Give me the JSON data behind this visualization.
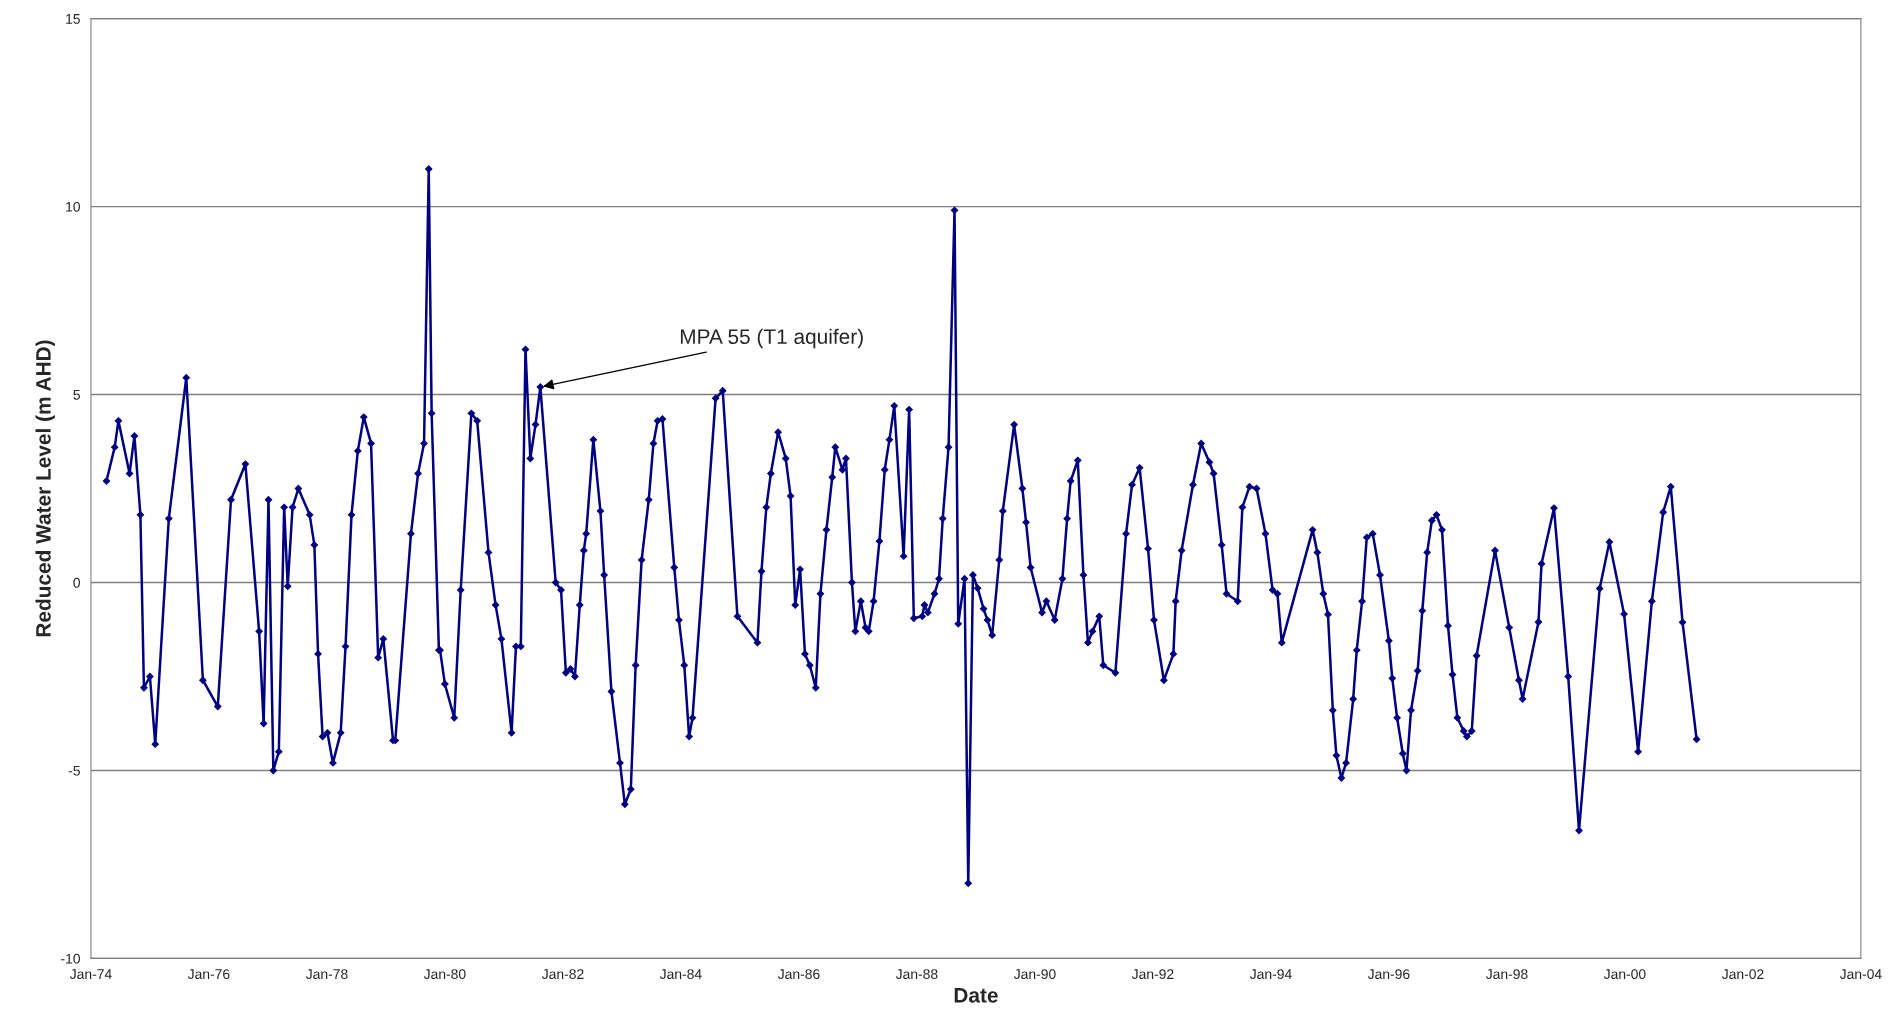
{
  "chart_data": {
    "type": "line",
    "xlabel": "Date",
    "ylabel": "Reduced Water Level (m AHD)",
    "annotations": [
      {
        "text": "MPA 55 (T1 aquifer)",
        "x": "1981-08-14",
        "y": 5.2
      }
    ],
    "series": [
      {
        "color": "#000080",
        "x": [
          "1974-04-07",
          "1974-05-28",
          "1974-06-20",
          "1974-08-28",
          "1974-09-27",
          "1974-11-03",
          "1974-11-25",
          "1975-01-01",
          "1975-02-03",
          "1975-04-28",
          "1975-08-14",
          "1975-11-25",
          "1976-02-25",
          "1976-05-17",
          "1976-08-14",
          "1976-11-07",
          "1976-12-05",
          "1977-01-04",
          "1977-02-03",
          "1977-03-09",
          "1977-04-11",
          "1977-05-03",
          "1977-06-02",
          "1977-07-08",
          "1977-09-16",
          "1977-10-15",
          "1977-11-07",
          "1977-12-05",
          "1978-01-04",
          "1978-02-07",
          "1978-03-27",
          "1978-04-26",
          "1978-06-02",
          "1978-07-11",
          "1978-08-17",
          "1978-10-01",
          "1978-11-14",
          "1978-12-16",
          "1979-02-14",
          "1979-02-28",
          "1979-06-05",
          "1979-07-19",
          "1979-08-25",
          "1979-09-23",
          "1979-10-11",
          "1979-11-25",
          "1979-12-02",
          "1980-01-01",
          "1980-02-28",
          "1980-04-08",
          "1980-06-13",
          "1980-07-19",
          "1980-09-27",
          "1980-11-10",
          "1980-12-16",
          "1981-02-17",
          "1981-03-16",
          "1981-04-15",
          "1981-05-14",
          "1981-06-13",
          "1981-07-15",
          "1981-08-14",
          "1981-11-17",
          "1981-12-20",
          "1982-01-19",
          "1982-02-17",
          "1982-03-16",
          "1982-04-15",
          "1982-05-10",
          "1982-05-25",
          "1982-07-08",
          "1982-08-21",
          "1982-09-13",
          "1982-10-28",
          "1982-12-20",
          "1983-01-19",
          "1983-02-25",
          "1983-03-27",
          "1983-05-03",
          "1983-06-16",
          "1983-07-15",
          "1983-08-10",
          "1983-09-09",
          "1983-11-21",
          "1983-12-20",
          "1984-01-22",
          "1984-02-21",
          "1984-03-13",
          "1984-08-03",
          "1984-09-16",
          "1984-12-16",
          "1985-04-19",
          "1985-05-14",
          "1985-06-13",
          "1985-07-11",
          "1985-08-25",
          "1985-10-11",
          "1985-11-10",
          "1985-12-09",
          "1986-01-08",
          "1986-02-07",
          "1986-03-09",
          "1986-04-15",
          "1986-05-14",
          "1986-06-20",
          "1986-07-26",
          "1986-08-14",
          "1986-09-27",
          "1986-10-19",
          "1986-11-25",
          "1986-12-16",
          "1987-01-19",
          "1987-02-17",
          "1987-03-09",
          "1987-04-08",
          "1987-05-14",
          "1987-06-16",
          "1987-07-15",
          "1987-08-14",
          "1987-10-11",
          "1987-11-14",
          "1987-12-13",
          "1988-02-03",
          "1988-02-17",
          "1988-03-09",
          "1988-04-19",
          "1988-05-17",
          "1988-06-09",
          "1988-07-15",
          "1988-08-21",
          "1988-09-13",
          "1988-10-22",
          "1988-11-14",
          "1988-12-13",
          "1989-01-11",
          "1989-02-17",
          "1989-03-13",
          "1989-04-11",
          "1989-05-25",
          "1989-06-16",
          "1989-08-25",
          "1989-10-15",
          "1989-11-07",
          "1989-12-05",
          "1990-02-14",
          "1990-03-13",
          "1990-05-03",
          "1990-06-20",
          "1990-07-19",
          "1990-08-10",
          "1990-09-23",
          "1990-10-28",
          "1990-11-25",
          "1990-12-23",
          "1991-02-03",
          "1991-02-28",
          "1991-05-14",
          "1991-07-19",
          "1991-08-25",
          "1991-10-11",
          "1991-12-02",
          "1992-01-08",
          "1992-03-09",
          "1992-05-07",
          "1992-05-21",
          "1992-06-27",
          "1992-09-05",
          "1992-10-26",
          "1992-12-16",
          "1993-01-11",
          "1993-03-02",
          "1993-04-01",
          "1993-06-09",
          "1993-07-08",
          "1993-08-21",
          "1993-10-04",
          "1993-11-28",
          "1994-01-11",
          "1994-02-10",
          "1994-03-09",
          "1994-09-16",
          "1994-10-15",
          "1994-11-21",
          "1994-12-20",
          "1995-01-19",
          "1995-02-10",
          "1995-03-13",
          "1995-04-11",
          "1995-05-25",
          "1995-06-16",
          "1995-07-19",
          "1995-08-17",
          "1995-09-23",
          "1995-11-07",
          "1996-01-01",
          "1996-01-22",
          "1996-02-21",
          "1996-03-27",
          "1996-04-19",
          "1996-05-17",
          "1996-06-27",
          "1996-07-26",
          "1996-08-25",
          "1996-09-23",
          "1996-10-22",
          "1996-11-25",
          "1997-01-01",
          "1997-01-29",
          "1997-02-28",
          "1997-04-08",
          "1997-04-28",
          "1997-05-28",
          "1997-06-27",
          "1997-10-19",
          "1998-01-15",
          "1998-03-16",
          "1998-04-08",
          "1998-07-15",
          "1998-08-03",
          "1998-10-19",
          "1999-01-15",
          "1999-03-23",
          "1999-07-29",
          "1999-09-27",
          "1999-12-27",
          "2000-03-23",
          "2000-06-16",
          "2000-08-25",
          "2000-10-11",
          "2000-12-23",
          "2001-03-20"
        ],
        "values": [
          2.7,
          3.6,
          4.3,
          2.9,
          3.9,
          1.8,
          -2.8,
          -2.5,
          -4.3,
          1.7,
          5.45,
          -2.6,
          -3.3,
          2.2,
          3.15,
          -1.3,
          -3.75,
          2.2,
          -5.0,
          -4.5,
          2.0,
          -0.1,
          2.0,
          2.5,
          1.8,
          1.0,
          -1.9,
          -4.1,
          -4.0,
          -4.8,
          -4.0,
          -1.7,
          1.8,
          3.5,
          4.4,
          3.7,
          -2.0,
          -1.5,
          -4.2,
          -4.2,
          1.3,
          2.9,
          3.7,
          11.0,
          4.5,
          -1.8,
          -1.8,
          -2.7,
          -3.6,
          -0.2,
          4.5,
          4.3,
          0.8,
          -0.6,
          -1.5,
          -4.0,
          -1.7,
          -1.7,
          6.2,
          3.3,
          4.2,
          5.2,
          0.0,
          -0.2,
          -2.4,
          -2.3,
          -2.5,
          -0.6,
          0.85,
          1.3,
          3.8,
          1.9,
          0.2,
          -2.9,
          -4.8,
          -5.9,
          -5.5,
          -2.2,
          0.6,
          2.2,
          3.7,
          4.3,
          4.35,
          0.4,
          -1.0,
          -2.2,
          -4.1,
          -3.6,
          4.9,
          5.1,
          -0.9,
          -1.6,
          0.3,
          2.0,
          2.9,
          4.0,
          3.3,
          2.3,
          -0.6,
          0.35,
          -1.9,
          -2.2,
          -2.8,
          -0.3,
          1.4,
          2.8,
          3.6,
          3.0,
          3.3,
          0.0,
          -1.3,
          -0.5,
          -1.2,
          -1.3,
          -0.5,
          1.1,
          3.0,
          3.8,
          4.7,
          0.7,
          4.6,
          -0.95,
          -0.9,
          -0.6,
          -0.8,
          -0.3,
          0.1,
          1.7,
          3.6,
          9.9,
          -1.1,
          0.1,
          -8.0,
          0.2,
          -0.15,
          -0.7,
          -1.0,
          -1.4,
          0.6,
          1.9,
          4.2,
          2.5,
          1.6,
          0.4,
          -0.8,
          -0.5,
          -1.0,
          0.1,
          1.7,
          2.7,
          3.25,
          0.2,
          -1.6,
          -1.3,
          -0.9,
          -2.2,
          -2.4,
          1.3,
          2.6,
          3.05,
          0.9,
          -1.0,
          -2.6,
          -1.9,
          -0.5,
          0.85,
          2.6,
          3.7,
          3.2,
          2.9,
          1.0,
          -0.3,
          -0.5,
          2.0,
          2.55,
          2.5,
          1.3,
          -0.2,
          -0.3,
          -1.6,
          1.4,
          0.8,
          -0.3,
          -0.85,
          -3.4,
          -4.6,
          -5.2,
          -4.8,
          -3.1,
          -1.8,
          -0.5,
          1.2,
          1.3,
          0.2,
          -1.55,
          -2.55,
          -3.6,
          -4.55,
          -5.0,
          -3.4,
          -2.35,
          -0.75,
          0.8,
          1.65,
          1.8,
          1.4,
          -1.15,
          -2.45,
          -3.6,
          -3.95,
          -4.1,
          -3.95,
          -1.95,
          0.85,
          -1.2,
          -2.6,
          -3.1,
          -1.05,
          0.5,
          1.98,
          -2.5,
          -6.6,
          -0.16,
          1.08,
          -0.84,
          -4.5,
          -0.5,
          1.87,
          2.55,
          -1.06,
          -4.17
        ]
      }
    ],
    "xlim": [
      "1974-01-01",
      "2004-01-01"
    ],
    "xticks": [
      {
        "value": "1974-01-01",
        "label": "Jan-74"
      },
      {
        "value": "1976-01-01",
        "label": "Jan-76"
      },
      {
        "value": "1978-01-01",
        "label": "Jan-78"
      },
      {
        "value": "1980-01-01",
        "label": "Jan-80"
      },
      {
        "value": "1982-01-01",
        "label": "Jan-82"
      },
      {
        "value": "1984-01-01",
        "label": "Jan-84"
      },
      {
        "value": "1986-01-01",
        "label": "Jan-86"
      },
      {
        "value": "1988-01-01",
        "label": "Jan-88"
      },
      {
        "value": "1990-01-01",
        "label": "Jan-90"
      },
      {
        "value": "1992-01-01",
        "label": "Jan-92"
      },
      {
        "value": "1994-01-01",
        "label": "Jan-94"
      },
      {
        "value": "1996-01-01",
        "label": "Jan-96"
      },
      {
        "value": "1998-01-01",
        "label": "Jan-98"
      },
      {
        "value": "2000-01-01",
        "label": "Jan-00"
      },
      {
        "value": "2002-01-01",
        "label": "Jan-02"
      },
      {
        "value": "2004-01-01",
        "label": "Jan-04"
      }
    ],
    "ylim": [
      -10,
      15
    ],
    "yticks": [
      -10,
      -5,
      0,
      5,
      10,
      15
    ],
    "grid": "y",
    "marker": "diamond",
    "line_style": "solid"
  }
}
